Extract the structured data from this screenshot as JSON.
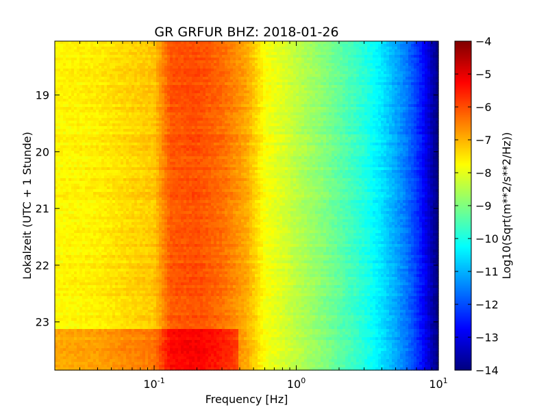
{
  "chart_data": {
    "type": "heatmap",
    "title": "GR GRFUR BHZ: 2018-01-26",
    "xlabel": "Frequency [Hz]",
    "ylabel": "Lokalzeit (UTC + 1 Stunde)",
    "x_scale": "log",
    "xlim": [
      0.02,
      10
    ],
    "x_ticks": [
      {
        "value": 0.1,
        "base": "10",
        "exp": "-1"
      },
      {
        "value": 1,
        "base": "10",
        "exp": "0"
      },
      {
        "value": 10,
        "base": "10",
        "exp": "1"
      }
    ],
    "ylim": [
      18.05,
      23.85
    ],
    "y_inverted": true,
    "y_ticks": [
      19,
      20,
      21,
      22,
      23
    ],
    "y_tick_labels": [
      "19",
      "20",
      "21",
      "22",
      "23"
    ],
    "colorbar": {
      "label": "Log10(Sqrt(m**2/s**2/Hz))",
      "range": [
        -14,
        -4
      ],
      "ticks": [
        -4,
        -5,
        -6,
        -7,
        -8,
        -9,
        -10,
        -11,
        -12,
        -13,
        -14
      ],
      "tick_labels": [
        "−4",
        "−5",
        "−6",
        "−7",
        "−8",
        "−9",
        "−10",
        "−11",
        "−12",
        "−13",
        "−14"
      ],
      "colormap": "jet"
    },
    "spectrum_profile": {
      "frequency_hz": [
        0.02,
        0.04,
        0.06,
        0.1,
        0.13,
        0.2,
        0.3,
        0.45,
        0.6,
        0.8,
        1.0,
        1.5,
        2.0,
        3.0,
        4.0,
        5.0,
        6.0,
        7.0,
        8.0,
        9.0,
        10.0
      ],
      "level_log10": [
        -7.7,
        -7.6,
        -7.4,
        -7.2,
        -6.1,
        -6.0,
        -6.3,
        -6.9,
        -7.8,
        -8.1,
        -8.4,
        -8.9,
        -9.3,
        -9.9,
        -10.5,
        -11.1,
        -11.6,
        -12.2,
        -12.8,
        -13.5,
        -14.0
      ]
    },
    "night_end_increase": {
      "start_hour": 23.1,
      "frequency_max_hz": 0.4,
      "delta_log10": 0.8
    }
  }
}
